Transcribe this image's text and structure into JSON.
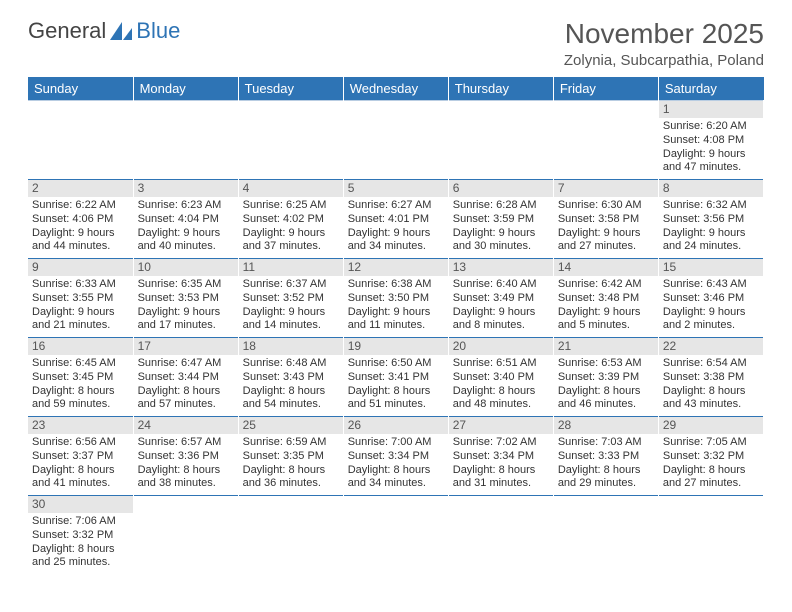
{
  "logo": {
    "text1": "General",
    "text2": "Blue"
  },
  "title": "November 2025",
  "location": "Zolynia, Subcarpathia, Poland",
  "colors": {
    "headerBg": "#2e74b5",
    "dayBg": "#e6e6e6"
  },
  "dayHeaders": [
    "Sunday",
    "Monday",
    "Tuesday",
    "Wednesday",
    "Thursday",
    "Friday",
    "Saturday"
  ],
  "weeks": [
    [
      null,
      null,
      null,
      null,
      null,
      null,
      {
        "n": "1",
        "sr": "6:20 AM",
        "ss": "4:08 PM",
        "dl": "9 hours and 47 minutes."
      }
    ],
    [
      {
        "n": "2",
        "sr": "6:22 AM",
        "ss": "4:06 PM",
        "dl": "9 hours and 44 minutes."
      },
      {
        "n": "3",
        "sr": "6:23 AM",
        "ss": "4:04 PM",
        "dl": "9 hours and 40 minutes."
      },
      {
        "n": "4",
        "sr": "6:25 AM",
        "ss": "4:02 PM",
        "dl": "9 hours and 37 minutes."
      },
      {
        "n": "5",
        "sr": "6:27 AM",
        "ss": "4:01 PM",
        "dl": "9 hours and 34 minutes."
      },
      {
        "n": "6",
        "sr": "6:28 AM",
        "ss": "3:59 PM",
        "dl": "9 hours and 30 minutes."
      },
      {
        "n": "7",
        "sr": "6:30 AM",
        "ss": "3:58 PM",
        "dl": "9 hours and 27 minutes."
      },
      {
        "n": "8",
        "sr": "6:32 AM",
        "ss": "3:56 PM",
        "dl": "9 hours and 24 minutes."
      }
    ],
    [
      {
        "n": "9",
        "sr": "6:33 AM",
        "ss": "3:55 PM",
        "dl": "9 hours and 21 minutes."
      },
      {
        "n": "10",
        "sr": "6:35 AM",
        "ss": "3:53 PM",
        "dl": "9 hours and 17 minutes."
      },
      {
        "n": "11",
        "sr": "6:37 AM",
        "ss": "3:52 PM",
        "dl": "9 hours and 14 minutes."
      },
      {
        "n": "12",
        "sr": "6:38 AM",
        "ss": "3:50 PM",
        "dl": "9 hours and 11 minutes."
      },
      {
        "n": "13",
        "sr": "6:40 AM",
        "ss": "3:49 PM",
        "dl": "9 hours and 8 minutes."
      },
      {
        "n": "14",
        "sr": "6:42 AM",
        "ss": "3:48 PM",
        "dl": "9 hours and 5 minutes."
      },
      {
        "n": "15",
        "sr": "6:43 AM",
        "ss": "3:46 PM",
        "dl": "9 hours and 2 minutes."
      }
    ],
    [
      {
        "n": "16",
        "sr": "6:45 AM",
        "ss": "3:45 PM",
        "dl": "8 hours and 59 minutes."
      },
      {
        "n": "17",
        "sr": "6:47 AM",
        "ss": "3:44 PM",
        "dl": "8 hours and 57 minutes."
      },
      {
        "n": "18",
        "sr": "6:48 AM",
        "ss": "3:43 PM",
        "dl": "8 hours and 54 minutes."
      },
      {
        "n": "19",
        "sr": "6:50 AM",
        "ss": "3:41 PM",
        "dl": "8 hours and 51 minutes."
      },
      {
        "n": "20",
        "sr": "6:51 AM",
        "ss": "3:40 PM",
        "dl": "8 hours and 48 minutes."
      },
      {
        "n": "21",
        "sr": "6:53 AM",
        "ss": "3:39 PM",
        "dl": "8 hours and 46 minutes."
      },
      {
        "n": "22",
        "sr": "6:54 AM",
        "ss": "3:38 PM",
        "dl": "8 hours and 43 minutes."
      }
    ],
    [
      {
        "n": "23",
        "sr": "6:56 AM",
        "ss": "3:37 PM",
        "dl": "8 hours and 41 minutes."
      },
      {
        "n": "24",
        "sr": "6:57 AM",
        "ss": "3:36 PM",
        "dl": "8 hours and 38 minutes."
      },
      {
        "n": "25",
        "sr": "6:59 AM",
        "ss": "3:35 PM",
        "dl": "8 hours and 36 minutes."
      },
      {
        "n": "26",
        "sr": "7:00 AM",
        "ss": "3:34 PM",
        "dl": "8 hours and 34 minutes."
      },
      {
        "n": "27",
        "sr": "7:02 AM",
        "ss": "3:34 PM",
        "dl": "8 hours and 31 minutes."
      },
      {
        "n": "28",
        "sr": "7:03 AM",
        "ss": "3:33 PM",
        "dl": "8 hours and 29 minutes."
      },
      {
        "n": "29",
        "sr": "7:05 AM",
        "ss": "3:32 PM",
        "dl": "8 hours and 27 minutes."
      }
    ],
    [
      {
        "n": "30",
        "sr": "7:06 AM",
        "ss": "3:32 PM",
        "dl": "8 hours and 25 minutes."
      },
      null,
      null,
      null,
      null,
      null,
      null
    ]
  ],
  "labels": {
    "sunrise": "Sunrise:",
    "sunset": "Sunset:",
    "daylight": "Daylight:"
  }
}
